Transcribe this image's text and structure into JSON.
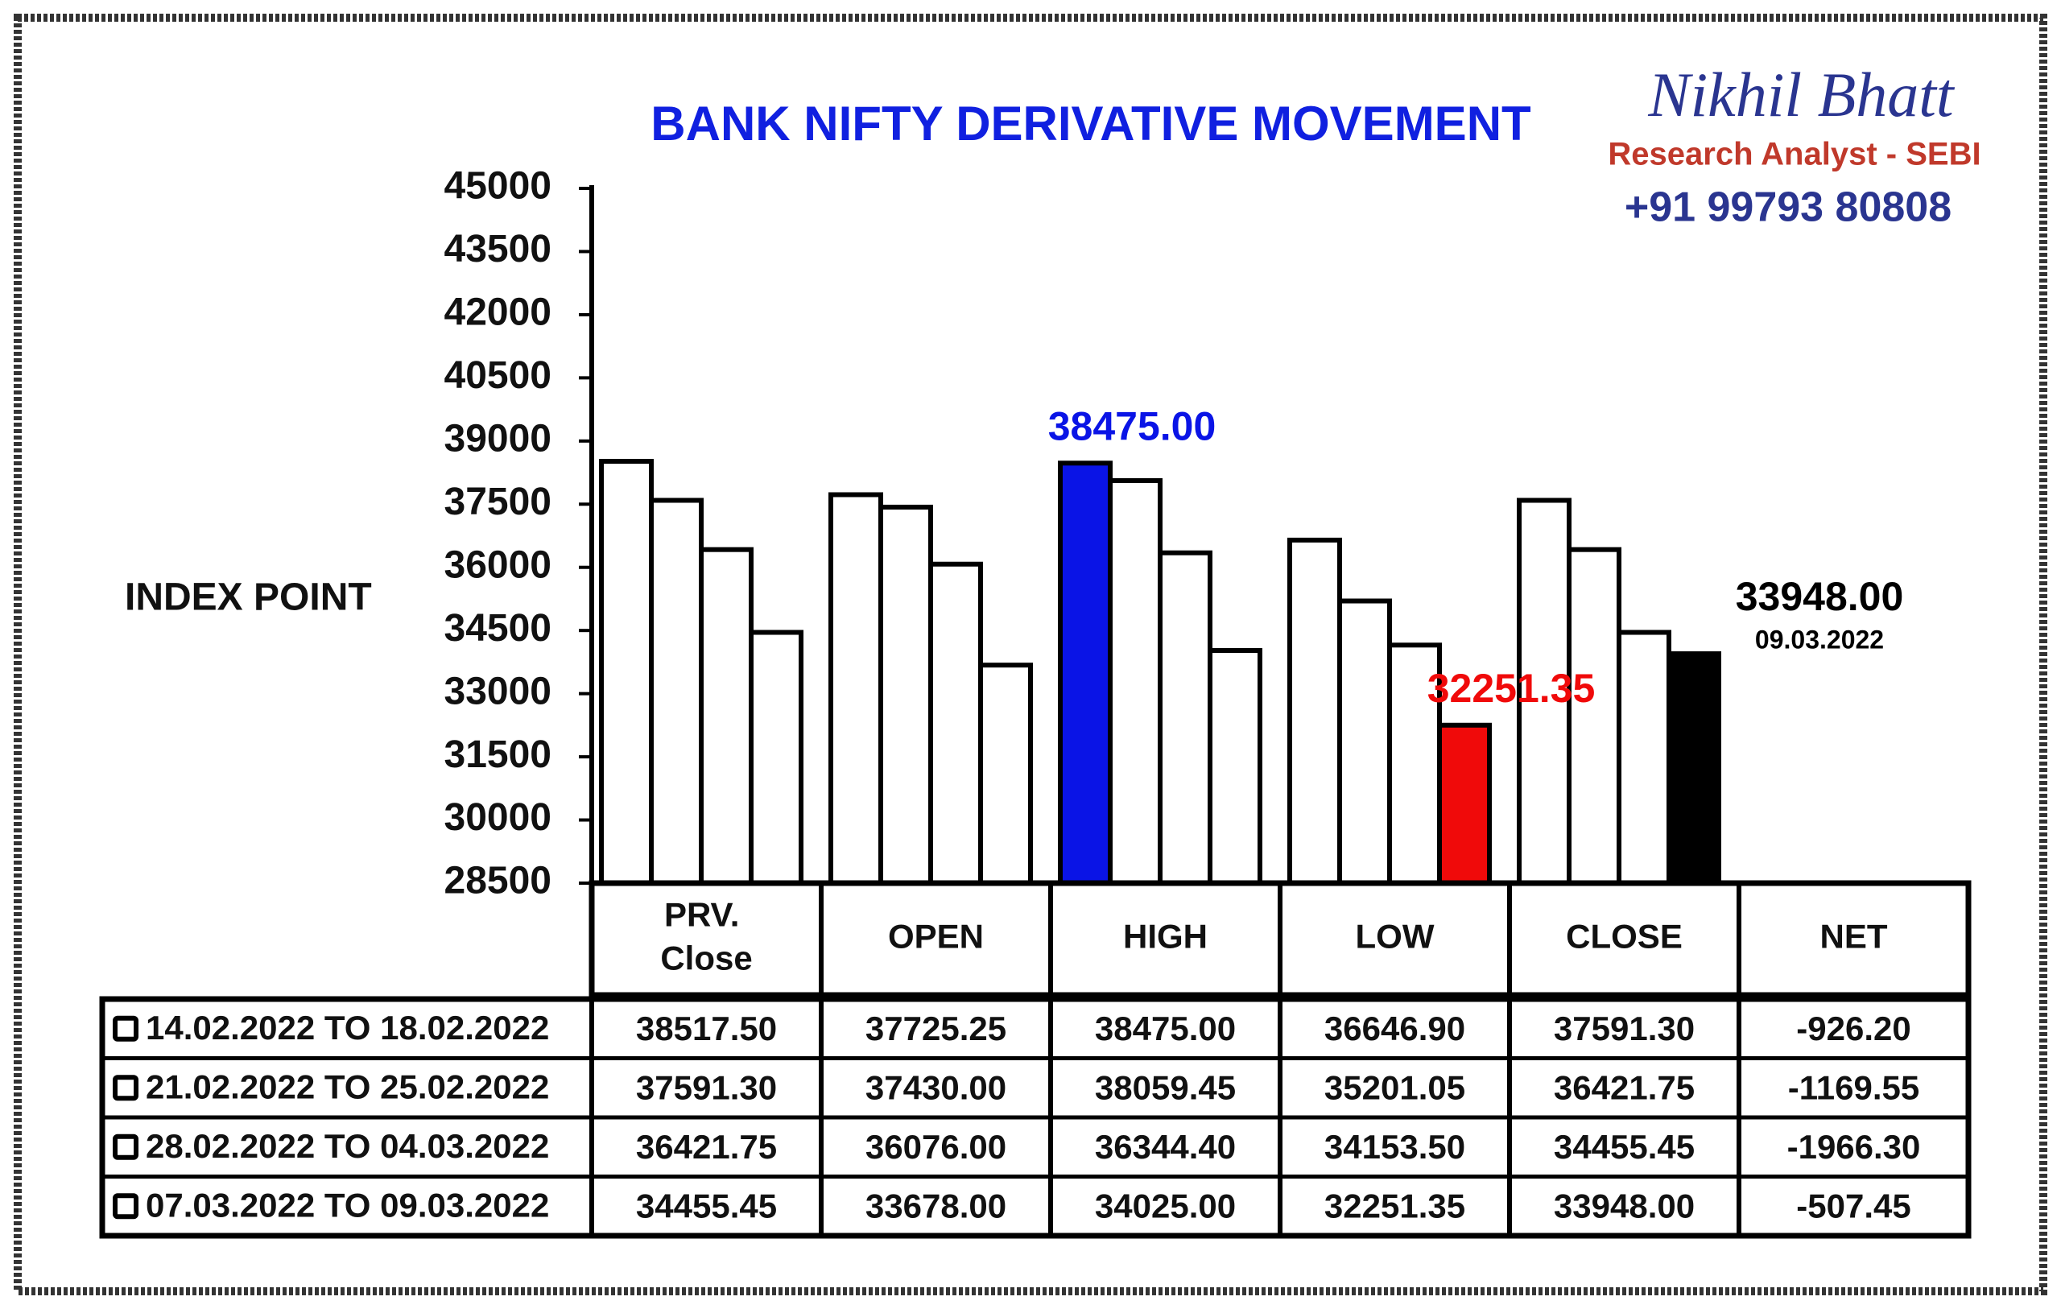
{
  "chart_data": {
    "type": "bar",
    "title": "BANK NIFTY DERIVATIVE MOVEMENT",
    "y_label": "INDEX POINT",
    "branding": {
      "name": "Nikhil Bhatt",
      "role": "Research Analyst - SEBI",
      "phone": "+91 99793 80808"
    },
    "categories": [
      "PRV. Close",
      "OPEN",
      "HIGH",
      "LOW",
      "CLOSE",
      "NET"
    ],
    "ylim": [
      28500,
      45000
    ],
    "yticks": [
      28500,
      30000,
      31500,
      33000,
      34500,
      36000,
      37500,
      39000,
      40500,
      42000,
      43500,
      45000
    ],
    "series": [
      {
        "name": "14.02.2022 TO 18.02.2022",
        "values": [
          38517.5,
          37725.25,
          38475,
          36646.9,
          37591.3,
          -926.2
        ],
        "value_labels": [
          "38517.50",
          "37725.25",
          "38475.00",
          "36646.90",
          "37591.30",
          "-926.20"
        ],
        "bar_colors": [
          "#ffffff",
          "#ffffff",
          "#0a14e6",
          "#ffffff",
          "#ffffff",
          null
        ],
        "point_labels": [
          null,
          null,
          "38475.00",
          null,
          null,
          null
        ],
        "point_label_positions": [
          null,
          null,
          "above",
          null,
          null,
          null
        ],
        "point_sublabels": [
          null,
          null,
          null,
          null,
          null,
          null
        ]
      },
      {
        "name": "21.02.2022 TO 25.02.2022",
        "values": [
          37591.3,
          37430,
          38059.45,
          35201.05,
          36421.75,
          -1169.55
        ],
        "value_labels": [
          "37591.30",
          "37430.00",
          "38059.45",
          "35201.05",
          "36421.75",
          "-1169.55"
        ],
        "bar_colors": [
          "#ffffff",
          "#ffffff",
          "#ffffff",
          "#ffffff",
          "#ffffff",
          null
        ],
        "point_labels": [
          null,
          null,
          null,
          null,
          null,
          null
        ],
        "point_label_positions": [
          null,
          null,
          null,
          null,
          null,
          null
        ],
        "point_sublabels": [
          null,
          null,
          null,
          null,
          null,
          null
        ]
      },
      {
        "name": "28.02.2022 TO 04.03.2022",
        "values": [
          36421.75,
          36076,
          36344.4,
          34153.5,
          34455.45,
          -1966.3
        ],
        "value_labels": [
          "36421.75",
          "36076.00",
          "36344.40",
          "34153.50",
          "34455.45",
          "-1966.30"
        ],
        "bar_colors": [
          "#ffffff",
          "#ffffff",
          "#ffffff",
          "#ffffff",
          "#ffffff",
          null
        ],
        "point_labels": [
          null,
          null,
          null,
          null,
          null,
          null
        ],
        "point_label_positions": [
          null,
          null,
          null,
          null,
          null,
          null
        ],
        "point_sublabels": [
          null,
          null,
          null,
          null,
          null,
          null
        ]
      },
      {
        "name": "07.03.2022 TO 09.03.2022",
        "values": [
          34455.45,
          33678,
          34025,
          32251.35,
          33948,
          -507.45
        ],
        "value_labels": [
          "34455.45",
          "33678.00",
          "34025.00",
          "32251.35",
          "33948.00",
          "-507.45"
        ],
        "bar_colors": [
          "#ffffff",
          "#ffffff",
          "#ffffff",
          "#f00a0a",
          "#000000",
          null
        ],
        "point_labels": [
          null,
          null,
          null,
          "32251.35",
          "33948.00",
          null
        ],
        "point_label_positions": [
          null,
          null,
          null,
          "above",
          "right",
          null
        ],
        "point_sublabels": [
          null,
          null,
          null,
          null,
          "09.03.2022",
          null
        ]
      }
    ]
  }
}
